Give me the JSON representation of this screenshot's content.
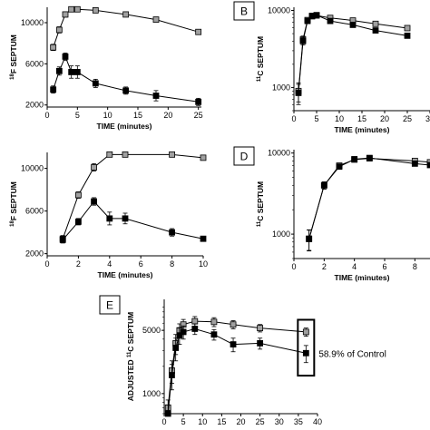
{
  "chart_data": [
    {
      "panel": "A",
      "letter": "",
      "type": "line",
      "xlabel": "TIME (minutes)",
      "ylabel_sup": "18",
      "ylabel_main": "F SEPTUM",
      "xticks": [
        "0",
        "5",
        "10",
        "15",
        "20",
        "25"
      ],
      "yticks": [
        "2000",
        "6000",
        "10000"
      ],
      "xlim": [
        0,
        25.5
      ],
      "ylim": [
        1800,
        11500
      ],
      "yscale": "linear",
      "series": [
        {
          "color": "#a0a0a0",
          "points": [
            [
              1,
              7600
            ],
            [
              2,
              9300
            ],
            [
              3,
              10800
            ],
            [
              4,
              11300
            ],
            [
              5,
              11300
            ],
            [
              8,
              11200
            ],
            [
              13,
              10800
            ],
            [
              18,
              10300
            ],
            [
              25,
              9100
            ]
          ],
          "err": [
            300,
            300,
            250,
            150,
            150,
            150,
            150,
            150,
            200
          ]
        },
        {
          "color": "#000000",
          "points": [
            [
              1,
              3500
            ],
            [
              2,
              5300
            ],
            [
              3,
              6700
            ],
            [
              4,
              5200
            ],
            [
              5,
              5200
            ],
            [
              8,
              4100
            ],
            [
              13,
              3400
            ],
            [
              18,
              2900
            ],
            [
              25,
              2300
            ]
          ],
          "err": [
            350,
            400,
            350,
            600,
            600,
            400,
            350,
            500,
            350
          ]
        }
      ]
    },
    {
      "panel": "B",
      "letter": "B",
      "type": "line",
      "xlabel": "TIME (minutes)",
      "ylabel_sup": "11",
      "ylabel_main": "C SEPTUM",
      "xticks": [
        "0",
        "5",
        "10",
        "15",
        "20",
        "25",
        "3"
      ],
      "yticks": [
        "1000",
        "10000"
      ],
      "xlim": [
        0,
        30
      ],
      "ylim": [
        500,
        11000
      ],
      "yscale": "log",
      "series": [
        {
          "color": "#a0a0a0",
          "points": [
            [
              1,
              900
            ],
            [
              2,
              4200
            ],
            [
              3,
              7500
            ],
            [
              4,
              8400
            ],
            [
              5,
              8600
            ],
            [
              8,
              8000
            ],
            [
              13,
              7400
            ],
            [
              18,
              6700
            ],
            [
              25,
              5900
            ]
          ],
          "err": [
            250,
            450,
            400,
            300,
            300,
            250,
            250,
            250,
            250
          ]
        },
        {
          "color": "#000000",
          "points": [
            [
              1,
              850
            ],
            [
              2,
              4000
            ],
            [
              3,
              7300
            ],
            [
              4,
              8500
            ],
            [
              5,
              8700
            ],
            [
              8,
              7300
            ],
            [
              13,
              6500
            ],
            [
              18,
              5500
            ],
            [
              25,
              4700
            ]
          ],
          "err": [
            250,
            450,
            400,
            300,
            300,
            250,
            250,
            250,
            250
          ]
        }
      ]
    },
    {
      "panel": "C",
      "letter": "",
      "type": "line",
      "xlabel": "TIME (minutes)",
      "ylabel_sup": "18",
      "ylabel_main": "F SEPTUM",
      "xticks": [
        "0",
        "2",
        "4",
        "6",
        "8",
        "10"
      ],
      "yticks": [
        "2000",
        "6000",
        "10000"
      ],
      "xlim": [
        0,
        10
      ],
      "ylim": [
        1800,
        11500
      ],
      "yscale": "linear",
      "series": [
        {
          "color": "#a0a0a0",
          "points": [
            [
              1,
              3400
            ],
            [
              2,
              7500
            ],
            [
              3,
              10100
            ],
            [
              4,
              11300
            ],
            [
              5,
              11300
            ],
            [
              8,
              11300
            ],
            [
              10,
              11000
            ]
          ],
          "err": [
            300,
            300,
            350,
            150,
            150,
            150,
            0
          ]
        },
        {
          "color": "#000000",
          "points": [
            [
              1,
              3300
            ],
            [
              2,
              5000
            ],
            [
              3,
              6900
            ],
            [
              4,
              5300
            ],
            [
              5,
              5300
            ],
            [
              8,
              4000
            ],
            [
              10,
              3400
            ]
          ],
          "err": [
            300,
            300,
            350,
            600,
            500,
            350,
            0
          ]
        }
      ]
    },
    {
      "panel": "D",
      "letter": "D",
      "type": "line",
      "xlabel": "TIME (minutes)",
      "ylabel_sup": "11",
      "ylabel_main": "C SEPTUM",
      "xticks": [
        "0",
        "2",
        "4",
        "6",
        "8"
      ],
      "yticks": [
        "1000",
        "10000"
      ],
      "xlim": [
        0,
        9
      ],
      "ylim": [
        500,
        11000
      ],
      "yscale": "log",
      "series": [
        {
          "color": "#a0a0a0",
          "points": [
            [
              1,
              880
            ],
            [
              2,
              4000
            ],
            [
              3,
              7000
            ],
            [
              4,
              8300
            ],
            [
              5,
              8600
            ],
            [
              8,
              8000
            ],
            [
              9,
              7700
            ]
          ],
          "err": [
            250,
            400,
            400,
            300,
            300,
            300,
            0
          ]
        },
        {
          "color": "#000000",
          "points": [
            [
              1,
              870
            ],
            [
              2,
              4000
            ],
            [
              3,
              6800
            ],
            [
              4,
              8400
            ],
            [
              5,
              8700
            ],
            [
              8,
              7400
            ],
            [
              9,
              7100
            ]
          ],
          "err": [
            250,
            400,
            400,
            300,
            300,
            300,
            0
          ]
        }
      ]
    },
    {
      "panel": "E",
      "letter": "E",
      "type": "line",
      "xlabel": "TIME (minutes)",
      "ylabel_sup": "11",
      "ylabel_main": "C SEPTUM",
      "ylabel_prefix": "ADJUSTED ",
      "xticks": [
        "0",
        "5",
        "10",
        "15",
        "20",
        "25",
        "30",
        "35",
        "40"
      ],
      "yticks": [
        "1000",
        "5000"
      ],
      "xlim": [
        0,
        40
      ],
      "ylim": [
        600,
        11000
      ],
      "yscale": "log",
      "annotation": "58.9% of Control",
      "series": [
        {
          "color": "#a0a0a0",
          "points": [
            [
              1,
              700
            ],
            [
              2,
              1800
            ],
            [
              3,
              3600
            ],
            [
              4,
              5000
            ],
            [
              5,
              5800
            ],
            [
              8,
              6300
            ],
            [
              13,
              6200
            ],
            [
              18,
              5800
            ],
            [
              25,
              5300
            ],
            [
              37,
              4800
            ]
          ],
          "err": [
            150,
            500,
            900,
            900,
            800,
            800,
            700,
            600,
            500,
            500
          ]
        },
        {
          "color": "#000000",
          "points": [
            [
              1,
              600
            ],
            [
              2,
              1600
            ],
            [
              3,
              3200
            ],
            [
              4,
              4400
            ],
            [
              5,
              4800
            ],
            [
              8,
              5200
            ],
            [
              13,
              4500
            ],
            [
              18,
              3500
            ],
            [
              25,
              3600
            ],
            [
              37,
              2800
            ]
          ],
          "err": [
            150,
            500,
            900,
            900,
            800,
            700,
            600,
            600,
            500,
            600
          ]
        }
      ]
    }
  ]
}
